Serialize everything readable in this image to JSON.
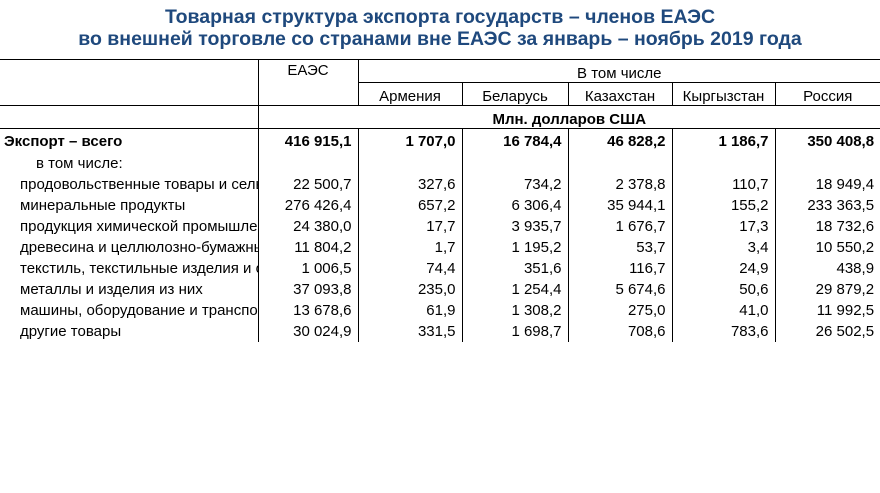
{
  "title": {
    "line1": "Товарная структура экспорта государств – членов ЕАЭС",
    "line2": "во внешней торговле со странами вне ЕАЭС за январь – ноябрь 2019 года"
  },
  "table": {
    "col_eaes": "ЕАЭС",
    "group_header": "В том числе",
    "countries": [
      "Армения",
      "Беларусь",
      "Казахстан",
      "Кыргызстан",
      "Россия"
    ],
    "unit": "Млн. долларов США",
    "total": {
      "label": "Экспорт – всего",
      "values": [
        "416 915,1",
        "1 707,0",
        "16 784,4",
        "46 828,2",
        "1 186,7",
        "350 408,8"
      ]
    },
    "including_label": "в том числе:",
    "rows": [
      {
        "label": "продовольственные товары и сельскохозяйственное сырье",
        "values": [
          "22 500,7",
          "327,6",
          "734,2",
          "2 378,8",
          "110,7",
          "18 949,4"
        ]
      },
      {
        "label": "минеральные продукты",
        "values": [
          "276 426,4",
          "657,2",
          "6 306,4",
          "35 944,1",
          "155,2",
          "233 363,5"
        ]
      },
      {
        "label": "продукция химической промышленности",
        "values": [
          "24 380,0",
          "17,7",
          "3 935,7",
          "1 676,7",
          "17,3",
          "18 732,6"
        ]
      },
      {
        "label": "древесина и целлюлозно-бумажные изделия",
        "values": [
          "11 804,2",
          "1,7",
          "1 195,2",
          "53,7",
          "3,4",
          "10 550,2"
        ]
      },
      {
        "label": "текстиль, текстильные изделия и обувь",
        "values": [
          "1 006,5",
          "74,4",
          "351,6",
          "116,7",
          "24,9",
          "438,9"
        ]
      },
      {
        "label": "металлы и изделия из них",
        "values": [
          "37 093,8",
          "235,0",
          "1 254,4",
          "5 674,6",
          "50,6",
          "29 879,2"
        ]
      },
      {
        "label": "машины, оборудование и транспортные средства",
        "values": [
          "13 678,6",
          "61,9",
          "1 308,2",
          "275,0",
          "41,0",
          "11 992,5"
        ]
      },
      {
        "label": "другие товары",
        "values": [
          "30 024,9",
          "331,5",
          "1 698,7",
          "708,6",
          "783,6",
          "26 502,5"
        ]
      }
    ]
  }
}
